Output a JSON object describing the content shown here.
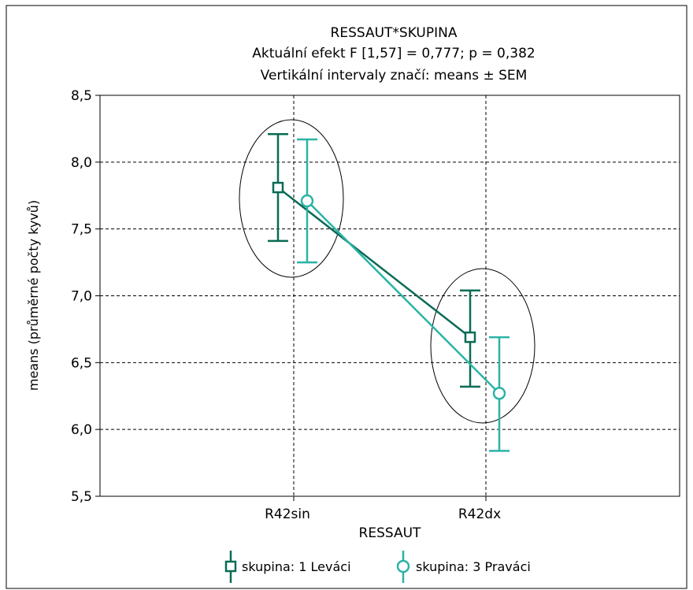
{
  "chart_data": {
    "type": "line",
    "title": "RESSAUT*SKUPINA",
    "subtitle_1": "Aktuální efekt F [1,57] = 0,777; p = 0,382",
    "subtitle_2": "Vertikální intervaly značí: means ± SEM",
    "xlabel": "RESSAUT",
    "ylabel": "means (průměrné počty kyvů)",
    "categories": [
      "R42sin",
      "R42dx"
    ],
    "ylim": [
      5.5,
      8.5
    ],
    "yticks": [
      5.5,
      6.0,
      6.5,
      7.0,
      7.5,
      8.0,
      8.5
    ],
    "ytick_labels": [
      "5,5",
      "6,0",
      "6,5",
      "7,0",
      "7,5",
      "8,0",
      "8,5"
    ],
    "grid": true,
    "legend_position": "bottom",
    "series": [
      {
        "name": "skupina: 1 Leváci",
        "color": "#0a6b55",
        "marker": "square",
        "values": [
          7.81,
          6.69
        ],
        "lower": [
          7.41,
          6.32
        ],
        "upper": [
          8.21,
          7.04
        ]
      },
      {
        "name": "skupina: 3 Praváci",
        "color": "#2bb3a6",
        "marker": "circle",
        "values": [
          7.71,
          6.27
        ],
        "lower": [
          7.25,
          5.84
        ],
        "upper": [
          8.17,
          6.69
        ]
      }
    ]
  }
}
